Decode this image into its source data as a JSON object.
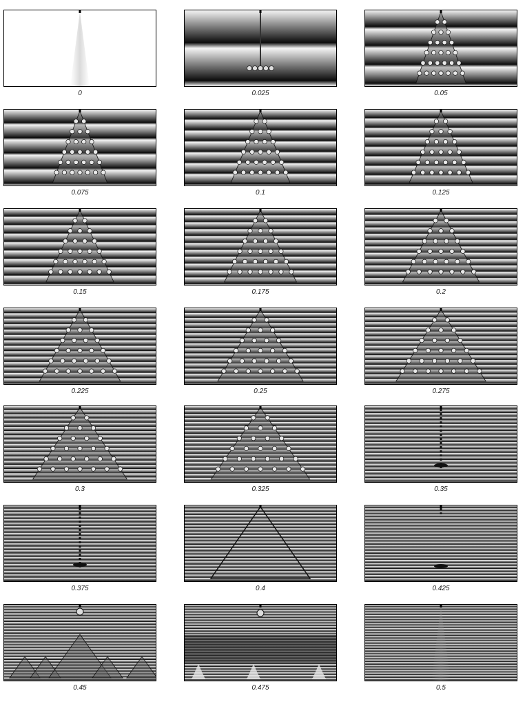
{
  "title": "",
  "panels": [
    {
      "label": "0"
    },
    {
      "label": "0.025"
    },
    {
      "label": "0.05"
    },
    {
      "label": "0.075"
    },
    {
      "label": "0.1"
    },
    {
      "label": "0.125"
    },
    {
      "label": "0.15"
    },
    {
      "label": "0.175"
    },
    {
      "label": "0.2"
    },
    {
      "label": "0.225"
    },
    {
      "label": "0.25"
    },
    {
      "label": "0.275"
    },
    {
      "label": "0.3"
    },
    {
      "label": "0.325"
    },
    {
      "label": "0.35"
    },
    {
      "label": "0.375"
    },
    {
      "label": "0.4"
    },
    {
      "label": "0.425"
    },
    {
      "label": "0.45"
    },
    {
      "label": "0.475"
    },
    {
      "label": "0.5"
    }
  ],
  "colors": {
    "stripe_dark": "#111111",
    "stripe_light": "#f2f2f2",
    "frame": "#000000"
  }
}
